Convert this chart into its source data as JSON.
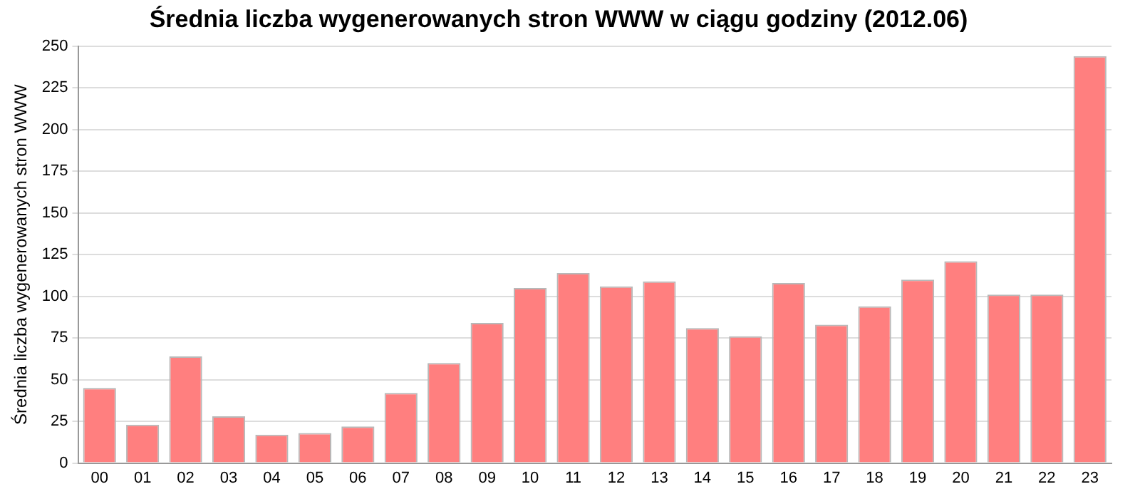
{
  "chart_data": {
    "type": "bar",
    "title": "Średnia liczba wygenerowanych stron WWW w ciągu godziny (2012.06)",
    "ylabel": "Średnia liczba wygenerowanych stron WWW",
    "categories": [
      "00",
      "01",
      "02",
      "03",
      "04",
      "05",
      "06",
      "07",
      "08",
      "09",
      "10",
      "11",
      "12",
      "13",
      "14",
      "15",
      "16",
      "17",
      "18",
      "19",
      "20",
      "21",
      "22",
      "23"
    ],
    "values": [
      45,
      23,
      64,
      28,
      17,
      18,
      22,
      42,
      60,
      84,
      105,
      114,
      106,
      109,
      81,
      76,
      108,
      83,
      94,
      110,
      121,
      101,
      101,
      244
    ],
    "color": "#ff7f7f",
    "ylim": [
      0,
      250
    ],
    "yticks": [
      0,
      25,
      50,
      75,
      100,
      125,
      150,
      175,
      200,
      225,
      250
    ],
    "grid": "y",
    "legend": false
  }
}
